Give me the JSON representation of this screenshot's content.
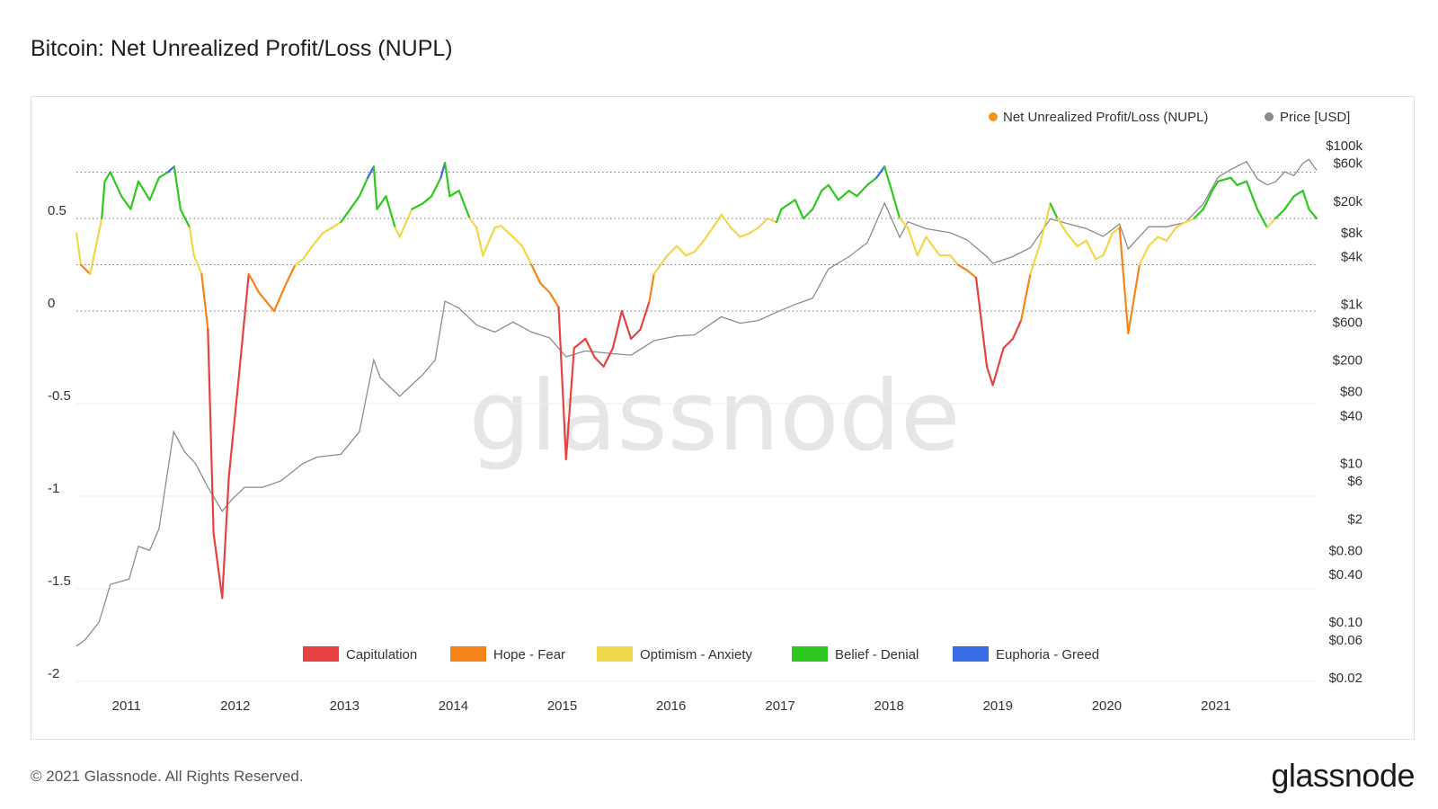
{
  "title": "Bitcoin: Net Unrealized Profit/Loss (NUPL)",
  "footer": {
    "copyright": "© 2021 Glassnode. All Rights Reserved.",
    "logo": "glassnode"
  },
  "watermark": "glassnode",
  "chart_data": {
    "type": "line",
    "title": "Bitcoin: Net Unrealized Profit/Loss (NUPL)",
    "legend_top": [
      {
        "label": "Net Unrealized Profit/Loss (NUPL)",
        "color": "#f7931a"
      },
      {
        "label": "Price [USD]",
        "color": "#8c8c8c"
      }
    ],
    "zones": [
      {
        "label": "Capitulation",
        "color": "#e84141",
        "range": [
          -2,
          0
        ]
      },
      {
        "label": "Hope - Fear",
        "color": "#f7841a",
        "range": [
          0,
          0.25
        ]
      },
      {
        "label": "Optimism - Anxiety",
        "color": "#f0d84b",
        "range": [
          0.25,
          0.5
        ]
      },
      {
        "label": "Belief - Denial",
        "color": "#2ec81e",
        "range": [
          0.5,
          0.75
        ]
      },
      {
        "label": "Euphoria - Greed",
        "color": "#3b6ce8",
        "range": [
          0.75,
          1
        ]
      }
    ],
    "x_ticks": [
      "2011",
      "2012",
      "2013",
      "2014",
      "2015",
      "2016",
      "2017",
      "2018",
      "2019",
      "2020",
      "2021"
    ],
    "x_range": [
      "2010-07-17",
      "2021-12-05"
    ],
    "y_left": {
      "ticks": [
        0.5,
        0,
        -0.5,
        -1,
        -1.5,
        -2
      ],
      "labels": [
        "0.5",
        "0",
        "-0.5",
        "-1",
        "-1.5",
        "-2"
      ],
      "range": [
        -2,
        0.8
      ]
    },
    "y_right": {
      "scale": "log",
      "tick_labels": [
        "$100k",
        "$60k",
        "$20k",
        "$8k",
        "$4k",
        "$1k",
        "$600",
        "$200",
        "$80",
        "$40",
        "$10",
        "$6",
        "$2",
        "$0.80",
        "$0.40",
        "$0.10",
        "$0.06",
        "$0.02"
      ],
      "tick_values": [
        100000,
        60000,
        20000,
        8000,
        4000,
        1000,
        600,
        200,
        80,
        40,
        10,
        6,
        2,
        0.8,
        0.4,
        0.1,
        0.06,
        0.02
      ]
    },
    "guide_lines": [
      0.75,
      0.5,
      0.25,
      0
    ],
    "series": [
      {
        "name": "Net Unrealized Profit/Loss (NUPL)",
        "x": [
          "2010-07-17",
          "2010-08-01",
          "2010-09-01",
          "2010-10-10",
          "2010-10-20",
          "2010-11-08",
          "2010-12-15",
          "2011-01-15",
          "2011-02-10",
          "2011-03-20",
          "2011-04-20",
          "2011-05-20",
          "2011-06-10",
          "2011-07-01",
          "2011-08-01",
          "2011-08-15",
          "2011-09-10",
          "2011-10-01",
          "2011-10-20",
          "2011-11-18",
          "2011-12-10",
          "2012-01-10",
          "2012-02-15",
          "2012-03-20",
          "2012-05-10",
          "2012-06-20",
          "2012-07-20",
          "2012-08-15",
          "2012-09-15",
          "2012-10-20",
          "2012-11-20",
          "2012-12-20",
          "2013-01-20",
          "2013-02-20",
          "2013-03-20",
          "2013-04-09",
          "2013-04-20",
          "2013-05-20",
          "2013-06-20",
          "2013-07-05",
          "2013-08-15",
          "2013-09-20",
          "2013-10-20",
          "2013-11-20",
          "2013-12-04",
          "2013-12-20",
          "2014-01-20",
          "2014-02-25",
          "2014-03-20",
          "2014-04-10",
          "2014-05-20",
          "2014-06-10",
          "2014-07-20",
          "2014-08-20",
          "2014-09-20",
          "2014-10-20",
          "2014-11-20",
          "2014-12-20",
          "2015-01-14",
          "2015-02-10",
          "2015-03-20",
          "2015-04-20",
          "2015-05-20",
          "2015-06-20",
          "2015-07-20",
          "2015-08-20",
          "2015-09-20",
          "2015-10-20",
          "2015-11-05",
          "2015-12-20",
          "2016-01-20",
          "2016-02-20",
          "2016-03-20",
          "2016-04-20",
          "2016-05-20",
          "2016-06-18",
          "2016-07-20",
          "2016-08-20",
          "2016-09-20",
          "2016-10-20",
          "2016-11-20",
          "2016-12-20",
          "2017-01-05",
          "2017-02-20",
          "2017-03-20",
          "2017-04-20",
          "2017-05-20",
          "2017-06-12",
          "2017-07-15",
          "2017-08-20",
          "2017-09-15",
          "2017-10-20",
          "2017-11-20",
          "2017-12-17",
          "2018-01-10",
          "2018-02-06",
          "2018-03-05",
          "2018-04-06",
          "2018-05-05",
          "2018-06-20",
          "2018-07-25",
          "2018-08-20",
          "2018-09-20",
          "2018-10-20",
          "2018-11-25",
          "2018-12-15",
          "2019-01-20",
          "2019-02-20",
          "2019-03-20",
          "2019-04-20",
          "2019-05-20",
          "2019-06-26",
          "2019-07-20",
          "2019-08-20",
          "2019-09-25",
          "2019-10-25",
          "2019-11-25",
          "2019-12-20",
          "2020-01-20",
          "2020-02-13",
          "2020-03-13",
          "2020-04-20",
          "2020-05-20",
          "2020-06-20",
          "2020-07-20",
          "2020-08-20",
          "2020-09-20",
          "2020-10-20",
          "2020-11-20",
          "2020-12-20",
          "2021-01-08",
          "2021-02-20",
          "2021-03-13",
          "2021-04-14",
          "2021-05-20",
          "2021-06-22",
          "2021-07-20",
          "2021-08-20",
          "2021-09-20",
          "2021-10-20",
          "2021-11-09",
          "2021-12-05"
        ],
        "y": [
          0.42,
          0.25,
          0.2,
          0.5,
          0.7,
          0.75,
          0.62,
          0.55,
          0.7,
          0.6,
          0.72,
          0.75,
          0.78,
          0.55,
          0.45,
          0.3,
          0.2,
          -0.1,
          -1.2,
          -1.55,
          -0.9,
          -0.4,
          0.2,
          0.1,
          0.0,
          0.15,
          0.25,
          0.28,
          0.35,
          0.42,
          0.45,
          0.48,
          0.55,
          0.62,
          0.72,
          0.78,
          0.55,
          0.62,
          0.45,
          0.4,
          0.55,
          0.58,
          0.62,
          0.72,
          0.8,
          0.62,
          0.65,
          0.5,
          0.45,
          0.3,
          0.45,
          0.46,
          0.4,
          0.35,
          0.25,
          0.15,
          0.1,
          0.02,
          -0.8,
          -0.2,
          -0.15,
          -0.25,
          -0.3,
          -0.2,
          0.0,
          -0.15,
          -0.1,
          0.05,
          0.2,
          0.3,
          0.35,
          0.3,
          0.32,
          0.38,
          0.45,
          0.52,
          0.45,
          0.4,
          0.42,
          0.45,
          0.5,
          0.48,
          0.55,
          0.6,
          0.5,
          0.55,
          0.65,
          0.68,
          0.6,
          0.65,
          0.62,
          0.68,
          0.72,
          0.78,
          0.65,
          0.5,
          0.45,
          0.3,
          0.4,
          0.3,
          0.3,
          0.25,
          0.22,
          0.18,
          -0.3,
          -0.4,
          -0.2,
          -0.15,
          -0.05,
          0.2,
          0.35,
          0.58,
          0.5,
          0.42,
          0.35,
          0.38,
          0.28,
          0.3,
          0.42,
          0.45,
          -0.12,
          0.25,
          0.35,
          0.4,
          0.38,
          0.45,
          0.48,
          0.5,
          0.55,
          0.65,
          0.7,
          0.72,
          0.68,
          0.7,
          0.55,
          0.45,
          0.5,
          0.55,
          0.62,
          0.65,
          0.55,
          0.5
        ]
      },
      {
        "name": "Price [USD]",
        "x": [
          "2010-07-17",
          "2010-08-15",
          "2010-10-01",
          "2010-11-08",
          "2011-01-10",
          "2011-02-10",
          "2011-03-20",
          "2011-04-20",
          "2011-06-08",
          "2011-07-15",
          "2011-08-20",
          "2011-10-01",
          "2011-11-18",
          "2011-12-20",
          "2012-02-01",
          "2012-04-01",
          "2012-06-01",
          "2012-08-15",
          "2012-10-01",
          "2012-12-20",
          "2013-02-20",
          "2013-04-09",
          "2013-05-01",
          "2013-07-05",
          "2013-09-20",
          "2013-11-01",
          "2013-12-04",
          "2014-01-20",
          "2014-03-20",
          "2014-05-20",
          "2014-07-20",
          "2014-09-20",
          "2014-11-20",
          "2015-01-14",
          "2015-03-20",
          "2015-06-20",
          "2015-08-20",
          "2015-11-05",
          "2016-01-20",
          "2016-03-20",
          "2016-06-18",
          "2016-08-20",
          "2016-10-20",
          "2016-12-20",
          "2017-02-20",
          "2017-04-20",
          "2017-06-12",
          "2017-08-20",
          "2017-10-20",
          "2017-12-17",
          "2018-02-06",
          "2018-03-05",
          "2018-05-05",
          "2018-07-25",
          "2018-09-20",
          "2018-11-25",
          "2018-12-15",
          "2019-02-20",
          "2019-04-20",
          "2019-06-26",
          "2019-08-20",
          "2019-10-25",
          "2019-12-20",
          "2020-02-13",
          "2020-03-13",
          "2020-05-20",
          "2020-07-20",
          "2020-09-20",
          "2020-11-20",
          "2021-01-08",
          "2021-02-20",
          "2021-04-14",
          "2021-05-20",
          "2021-06-22",
          "2021-07-20",
          "2021-08-20",
          "2021-09-20",
          "2021-10-20",
          "2021-11-09",
          "2021-12-05"
        ],
        "y": [
          0.05,
          0.06,
          0.1,
          0.3,
          0.35,
          0.9,
          0.8,
          1.5,
          25,
          14,
          10,
          5,
          2.5,
          3.5,
          5,
          5,
          6,
          10,
          12,
          13,
          25,
          200,
          120,
          70,
          130,
          200,
          1100,
          900,
          550,
          450,
          600,
          450,
          380,
          220,
          260,
          240,
          230,
          350,
          400,
          415,
          700,
          580,
          630,
          800,
          1000,
          1200,
          2800,
          4000,
          6000,
          19000,
          7000,
          11000,
          9000,
          8000,
          6500,
          4000,
          3300,
          4000,
          5200,
          12000,
          10500,
          9000,
          7200,
          10300,
          5000,
          9500,
          9500,
          10800,
          18500,
          40000,
          50000,
          63000,
          38000,
          32000,
          35000,
          47000,
          42000,
          60000,
          67000,
          49000
        ]
      }
    ]
  }
}
